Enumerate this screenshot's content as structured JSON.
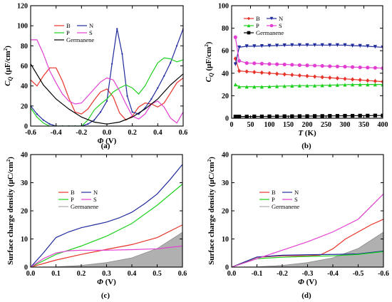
{
  "chart_data": [
    {
      "type": "line",
      "panel_label": "(a)",
      "xlabel_sym": "Φ",
      "xlabel_unit": " (V)",
      "ylabel_sym": "C",
      "ylabel_sub": "Q",
      "ylabel_unit": " (μF/cm",
      "ylabel_sup": "2",
      "ylabel_close": ")",
      "xlim": [
        -0.6,
        0.6
      ],
      "ylim": [
        0,
        120
      ],
      "xticks": [
        -0.6,
        -0.4,
        -0.2,
        0.0,
        0.2,
        0.4,
        0.6
      ],
      "xtick_labels": [
        "-0.6",
        "-0.4",
        "-0.2",
        "0.0",
        "0.2",
        "0.4",
        "0.6"
      ],
      "yticks": [
        0,
        20,
        40,
        60,
        80,
        100,
        120
      ],
      "ytick_labels": [
        "0",
        "20",
        "40",
        "60",
        "80",
        "100",
        "120"
      ],
      "legend_position": "top-left",
      "series": [
        {
          "name": "B",
          "color": "#e8332a",
          "x": [
            -0.6,
            -0.55,
            -0.5,
            -0.45,
            -0.4,
            -0.35,
            -0.3,
            -0.25,
            -0.2,
            -0.15,
            -0.1,
            -0.05,
            0.0,
            0.05,
            0.1,
            0.15,
            0.2,
            0.25,
            0.3,
            0.35,
            0.4,
            0.45,
            0.5,
            0.55,
            0.6
          ],
          "y": [
            46,
            40,
            50,
            58,
            58,
            45,
            28,
            14,
            12,
            17,
            26,
            34,
            37,
            29,
            13,
            6,
            10,
            19,
            23,
            22,
            19,
            23,
            33,
            43,
            48
          ]
        },
        {
          "name": "N",
          "color": "#1f2a9c",
          "x": [
            -0.6,
            -0.55,
            -0.5,
            -0.45,
            -0.4,
            -0.35,
            -0.3,
            -0.25,
            -0.2,
            -0.15,
            -0.1,
            -0.05,
            0.0,
            0.04,
            0.08,
            0.12,
            0.16,
            0.2,
            0.25,
            0.3,
            0.35,
            0.4,
            0.45,
            0.5,
            0.55,
            0.6
          ],
          "y": [
            20,
            12,
            6,
            2,
            0,
            0,
            0,
            0,
            0,
            2,
            6,
            14,
            25,
            62,
            97,
            72,
            30,
            14,
            12,
            18,
            27,
            38,
            50,
            63,
            80,
            97
          ]
        },
        {
          "name": "P",
          "color": "#1ed11e",
          "x": [
            -0.6,
            -0.55,
            -0.5,
            -0.45,
            -0.4,
            -0.35,
            -0.3,
            -0.25,
            -0.2,
            -0.15,
            -0.1,
            -0.05,
            0.0,
            0.05,
            0.1,
            0.15,
            0.2,
            0.25,
            0.3,
            0.35,
            0.4,
            0.45,
            0.5,
            0.55,
            0.6
          ],
          "y": [
            18,
            9,
            3,
            0,
            0,
            0,
            0,
            0,
            0,
            6,
            16,
            22,
            27,
            34,
            38,
            41,
            38,
            32,
            40,
            52,
            63,
            68,
            67,
            64,
            66
          ]
        },
        {
          "name": "S",
          "color": "#e23fd2",
          "x": [
            -0.6,
            -0.55,
            -0.5,
            -0.45,
            -0.4,
            -0.35,
            -0.3,
            -0.25,
            -0.2,
            -0.15,
            -0.1,
            -0.05,
            0.0,
            0.05,
            0.1,
            0.15,
            0.2,
            0.25,
            0.3,
            0.35,
            0.4,
            0.45,
            0.5,
            0.55,
            0.6
          ],
          "y": [
            86,
            86,
            72,
            55,
            43,
            32,
            25,
            22,
            23,
            30,
            37,
            44,
            48,
            46,
            35,
            22,
            10,
            7,
            12,
            22,
            25,
            19,
            8,
            3,
            14
          ]
        },
        {
          "name": "Germanene",
          "color": "#000000",
          "x": [
            -0.6,
            -0.5,
            -0.4,
            -0.3,
            -0.2,
            -0.1,
            0.0,
            0.1,
            0.2,
            0.3,
            0.4,
            0.5,
            0.6
          ],
          "y": [
            62,
            41,
            27,
            17,
            9,
            4,
            2,
            4,
            9,
            17,
            27,
            41,
            52
          ]
        }
      ]
    },
    {
      "type": "line",
      "panel_label": "(b)",
      "xlabel_sym": "T",
      "xlabel_unit": " (K)",
      "ylabel_sym": "C",
      "ylabel_sub": "Q",
      "ylabel_unit": " (μF/cm",
      "ylabel_sup": "2",
      "ylabel_close": ")",
      "xlim": [
        0,
        400
      ],
      "ylim": [
        0,
        100
      ],
      "xticks": [
        0,
        50,
        100,
        150,
        200,
        250,
        300,
        350,
        400
      ],
      "xtick_labels": [
        "0",
        "50",
        "100",
        "150",
        "200",
        "250",
        "300",
        "350",
        "400"
      ],
      "yticks": [
        0,
        20,
        40,
        60,
        80,
        100
      ],
      "ytick_labels": [
        "0",
        "20",
        "40",
        "60",
        "80",
        "100"
      ],
      "legend_position": "top-left",
      "series": [
        {
          "name": "B",
          "color": "#e8332a",
          "marker": "diamond",
          "x": [
            10,
            20,
            40,
            60,
            80,
            100,
            120,
            140,
            160,
            180,
            200,
            220,
            240,
            260,
            280,
            300,
            320,
            340,
            360,
            380,
            400
          ],
          "y": [
            53,
            42,
            41.5,
            41,
            40.5,
            40,
            39.5,
            39,
            38.5,
            38,
            37.5,
            37,
            36.5,
            36,
            35.5,
            35,
            34.5,
            34,
            33.5,
            33,
            32.5
          ]
        },
        {
          "name": "N",
          "color": "#1f2a9c",
          "marker": "triangle-down",
          "x": [
            10,
            20,
            40,
            60,
            80,
            100,
            120,
            140,
            160,
            180,
            200,
            220,
            240,
            260,
            280,
            300,
            320,
            340,
            360,
            380,
            400
          ],
          "y": [
            48,
            63,
            64,
            64,
            64.2,
            64.4,
            64.6,
            64.8,
            65,
            65,
            65,
            65,
            65,
            65,
            65,
            65,
            64.5,
            64.3,
            64,
            63.5,
            63
          ]
        },
        {
          "name": "P",
          "color": "#1ed11e",
          "marker": "triangle-up",
          "x": [
            10,
            20,
            40,
            60,
            80,
            100,
            120,
            140,
            160,
            180,
            200,
            220,
            240,
            260,
            280,
            300,
            320,
            340,
            360,
            380,
            400
          ],
          "y": [
            30,
            28,
            28,
            28,
            28,
            28.2,
            28.4,
            28.6,
            28.8,
            29,
            29,
            29,
            29.2,
            29.4,
            29.6,
            29.8,
            30,
            30,
            30,
            30,
            30
          ]
        },
        {
          "name": "S",
          "color": "#e23fd2",
          "marker": "circle",
          "x": [
            10,
            20,
            40,
            60,
            80,
            100,
            120,
            140,
            160,
            180,
            200,
            220,
            240,
            260,
            280,
            300,
            320,
            340,
            360,
            380,
            400
          ],
          "y": [
            72,
            51,
            49,
            48.8,
            48.5,
            48.2,
            48,
            47.8,
            47.5,
            47.2,
            47,
            46.8,
            46.5,
            46.2,
            46,
            45.8,
            45.5,
            45.2,
            45,
            44.8,
            44.5
          ]
        },
        {
          "name": "Germanene",
          "color": "#000000",
          "marker": "square",
          "x": [
            10,
            20,
            40,
            60,
            80,
            100,
            120,
            140,
            160,
            180,
            200,
            220,
            240,
            260,
            280,
            300,
            320,
            340,
            360,
            380,
            400
          ],
          "y": [
            1.5,
            1.5,
            1.5,
            1.6,
            1.6,
            1.7,
            1.7,
            1.8,
            1.8,
            1.9,
            1.9,
            2,
            2,
            2.1,
            2.1,
            2.2,
            2.2,
            2.3,
            2.3,
            2.4,
            2.4
          ]
        }
      ]
    },
    {
      "type": "line",
      "panel_label": "(c)",
      "xlabel_sym": "Φ",
      "xlabel_unit": " (V)",
      "ylabel_sym": "",
      "ylabel_sub": "",
      "ylabel_unit": "Surface charge density (μC/cm",
      "ylabel_sup": "2",
      "ylabel_close": ")",
      "xlim": [
        0,
        0.6
      ],
      "ylim": [
        0,
        40
      ],
      "xticks": [
        0.0,
        0.1,
        0.2,
        0.3,
        0.4,
        0.5,
        0.6
      ],
      "xtick_labels": [
        "0.0",
        "0.1",
        "0.2",
        "0.3",
        "0.4",
        "0.5",
        "0.6"
      ],
      "yticks": [
        0,
        10,
        20,
        30,
        40
      ],
      "ytick_labels": [
        "0",
        "10",
        "20",
        "30",
        "40"
      ],
      "legend_position": "center-left",
      "series": [
        {
          "name": "B",
          "color": "#e8332a",
          "x": [
            0,
            0.1,
            0.2,
            0.3,
            0.4,
            0.5,
            0.6
          ],
          "y": [
            0,
            2.5,
            4.5,
            6.3,
            8,
            10.5,
            15
          ]
        },
        {
          "name": "N",
          "color": "#1f2a9c",
          "x": [
            0,
            0.05,
            0.1,
            0.15,
            0.2,
            0.25,
            0.3,
            0.35,
            0.4,
            0.45,
            0.5,
            0.55,
            0.6
          ],
          "y": [
            0,
            5,
            10.5,
            12.5,
            14,
            15,
            16,
            17.5,
            19.5,
            22.5,
            26,
            31,
            36.5
          ]
        },
        {
          "name": "P",
          "color": "#1ed11e",
          "x": [
            0,
            0.1,
            0.2,
            0.3,
            0.4,
            0.5,
            0.6
          ],
          "y": [
            0,
            4.5,
            7.5,
            11,
            15.5,
            22,
            29.5
          ]
        },
        {
          "name": "S",
          "color": "#e23fd2",
          "x": [
            0,
            0.05,
            0.1,
            0.15,
            0.2,
            0.3,
            0.4,
            0.5,
            0.6
          ],
          "y": [
            0,
            3,
            5,
            5.8,
            6,
            6,
            6.2,
            6.5,
            7.5
          ]
        },
        {
          "name": "Germanene",
          "color": "#b0b0b0",
          "fill": true,
          "x": [
            0,
            0.1,
            0.2,
            0.3,
            0.4,
            0.5,
            0.6
          ],
          "y": [
            0,
            0.1,
            0.6,
            1.6,
            3.3,
            6.6,
            12.4
          ]
        }
      ]
    },
    {
      "type": "line",
      "panel_label": "(d)",
      "xlabel_sym": "Φ",
      "xlabel_unit": " (V)",
      "ylabel_sym": "",
      "ylabel_sub": "",
      "ylabel_unit": "Surface charge density (μC/cm",
      "ylabel_sup": "2",
      "ylabel_close": ")",
      "xlim": [
        0,
        -0.6
      ],
      "ylim": [
        0,
        40
      ],
      "xticks": [
        0.0,
        -0.1,
        -0.2,
        -0.3,
        -0.4,
        -0.5,
        -0.6
      ],
      "xtick_labels": [
        "0.0",
        "-0.1",
        "-0.2",
        "-0.3",
        "-0.4",
        "-0.5",
        "-0.6"
      ],
      "yticks": [
        0,
        10,
        20,
        30,
        40
      ],
      "ytick_labels": [
        "0",
        "10",
        "20",
        "30",
        "40"
      ],
      "legend_position": "center-left",
      "series": [
        {
          "name": "B",
          "color": "#e8332a",
          "x": [
            0,
            -0.1,
            -0.2,
            -0.3,
            -0.35,
            -0.4,
            -0.45,
            -0.5,
            -0.55,
            -0.6
          ],
          "y": [
            0,
            3.5,
            4,
            4,
            4.3,
            6.5,
            10,
            12.5,
            15,
            17
          ]
        },
        {
          "name": "N",
          "color": "#1f2a9c",
          "x": [
            0,
            -0.1,
            -0.2,
            -0.3,
            -0.4,
            -0.5,
            -0.6
          ],
          "y": [
            0,
            3.6,
            4.2,
            4.4,
            4.5,
            4.7,
            5.7
          ]
        },
        {
          "name": "P",
          "color": "#1ed11e",
          "x": [
            0,
            -0.1,
            -0.2,
            -0.3,
            -0.4,
            -0.5,
            -0.6
          ],
          "y": [
            0,
            3,
            3.5,
            3.8,
            4,
            4.5,
            5.5
          ]
        },
        {
          "name": "S",
          "color": "#e23fd2",
          "x": [
            0,
            -0.1,
            -0.2,
            -0.3,
            -0.4,
            -0.5,
            -0.6
          ],
          "y": [
            0,
            3,
            6,
            9,
            12.5,
            17,
            26
          ]
        },
        {
          "name": "Germanene",
          "color": "#b0b0b0",
          "fill": true,
          "x": [
            0,
            -0.1,
            -0.2,
            -0.3,
            -0.4,
            -0.5,
            -0.6
          ],
          "y": [
            0,
            0.1,
            0.6,
            1.6,
            3.3,
            6.6,
            12.4
          ]
        }
      ]
    }
  ]
}
